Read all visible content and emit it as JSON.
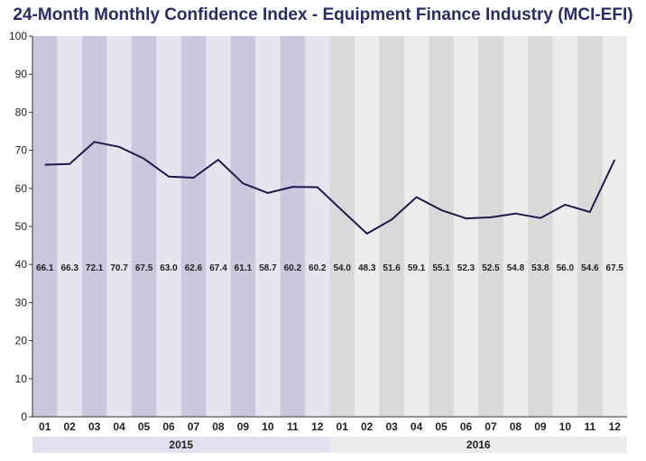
{
  "chart_data": {
    "type": "line",
    "title": "24-Month Monthly Confidence Index - Equipment Finance Industry (MCI-EFI)",
    "xlabel": "",
    "ylabel": "",
    "ylim": [
      0,
      100
    ],
    "yticks": [
      0,
      10,
      20,
      30,
      40,
      50,
      60,
      70,
      80,
      90,
      100
    ],
    "categories": [
      "01",
      "02",
      "03",
      "04",
      "05",
      "06",
      "07",
      "08",
      "09",
      "10",
      "11",
      "12",
      "01",
      "02",
      "03",
      "04",
      "05",
      "06",
      "07",
      "08",
      "09",
      "10",
      "11",
      "12"
    ],
    "years": [
      {
        "label": "2015",
        "start_index": 0,
        "end_index": 11
      },
      {
        "label": "2016",
        "start_index": 12,
        "end_index": 23
      }
    ],
    "values": [
      66.1,
      66.3,
      72.1,
      70.7,
      67.5,
      63.0,
      62.6,
      67.4,
      61.1,
      58.7,
      60.2,
      60.2,
      54.0,
      48.3,
      51.6,
      59.1,
      55.1,
      52.3,
      52.5,
      54.8,
      53.8,
      56.0,
      54.6,
      67.5
    ],
    "data_labels": [
      "66.1",
      "66.3",
      "72.1",
      "70.7",
      "67.5",
      "63.0",
      "62.6",
      "67.4",
      "61.1",
      "58.7",
      "60.2",
      "60.2",
      "54.0",
      "48.3",
      "51.6",
      "59.1",
      "55.1",
      "52.3",
      "52.5",
      "54.8",
      "53.8",
      "56.0",
      "54.6",
      "67.5"
    ],
    "plotted_values": [
      66.2,
      66.4,
      72.2,
      70.9,
      67.8,
      63.1,
      62.8,
      67.5,
      61.3,
      58.8,
      60.4,
      60.3,
      54.2,
      48.1,
      51.8,
      57.7,
      54.3,
      52.1,
      52.4,
      53.4,
      52.2,
      55.7,
      53.8,
      67.5
    ],
    "colors": {
      "line": "#1f1a4d",
      "band_2015_dark": "#cbc8de",
      "band_2015_light": "#e5e4ef",
      "band_2016_dark": "#d9d9d9",
      "band_2016_light": "#ececec",
      "title": "#2b2a6b",
      "year_bar_2015": "#e1e0ee",
      "year_bar_2016": "#ebebeb"
    },
    "grid": false,
    "legend": "none"
  }
}
